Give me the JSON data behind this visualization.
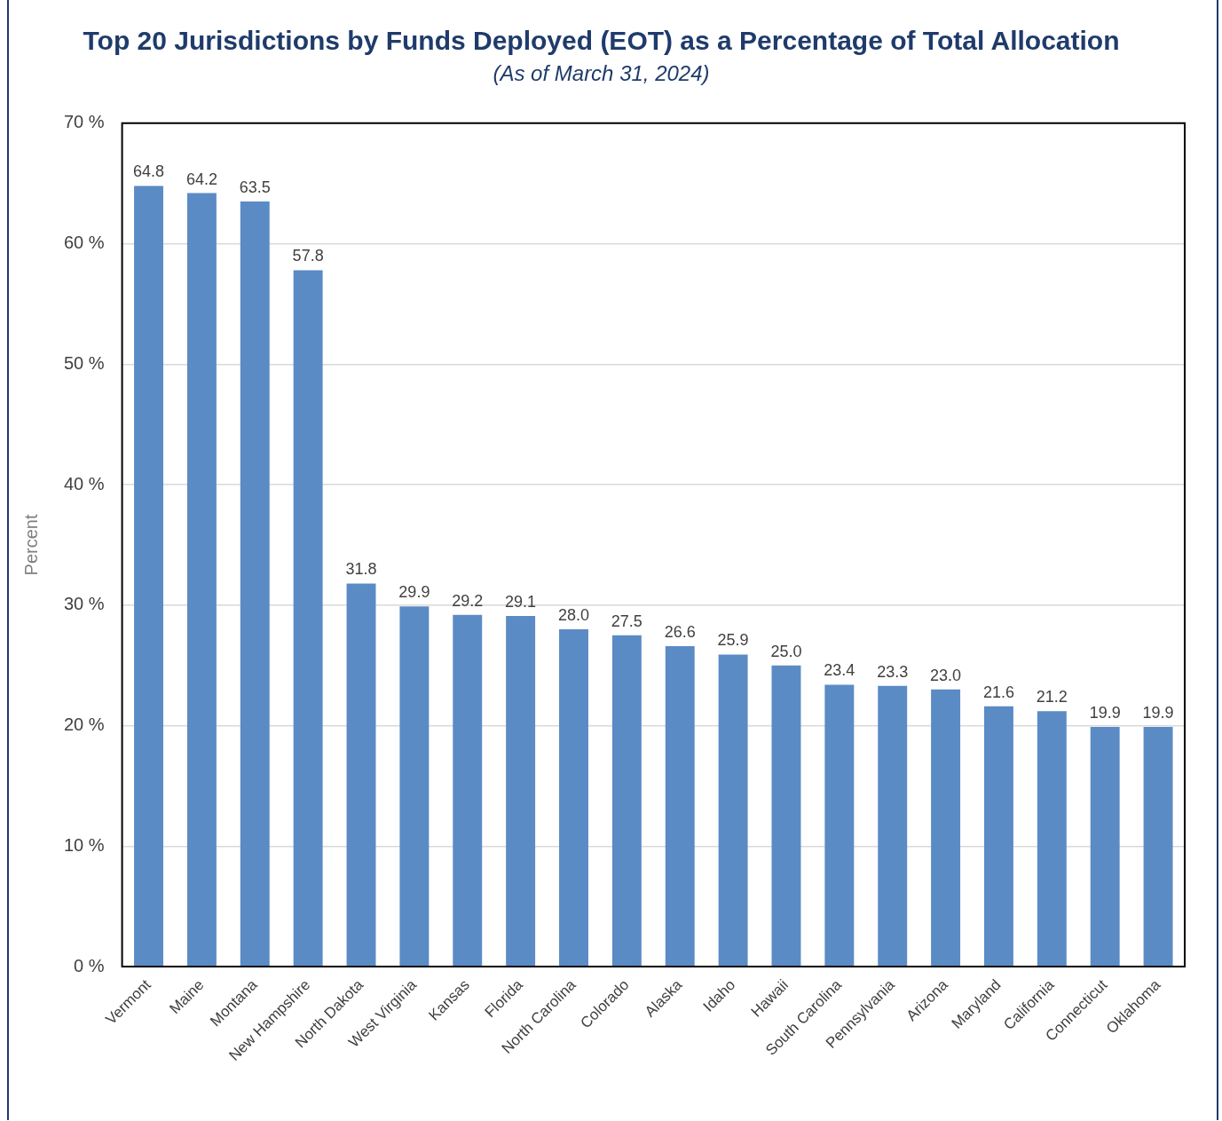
{
  "chart_data": {
    "type": "bar",
    "title": "Top 20 Jurisdictions by Funds Deployed (EOT) as a Percentage of Total Allocation",
    "subtitle": "(As of March 31, 2024)",
    "ylabel": "Percent",
    "categories": [
      "Vermont",
      "Maine",
      "Montana",
      "New Hampshire",
      "North Dakota",
      "West Virginia",
      "Kansas",
      "Florida",
      "North Carolina",
      "Colorado",
      "Alaska",
      "Idaho",
      "Hawaii",
      "South Carolina",
      "Pennsylvania",
      "Arizona",
      "Maryland",
      "California",
      "Connecticut",
      "Oklahoma"
    ],
    "values": [
      64.8,
      64.2,
      63.5,
      57.8,
      31.8,
      29.9,
      29.2,
      29.1,
      28.0,
      27.5,
      26.6,
      25.9,
      25.0,
      23.4,
      23.3,
      23.0,
      21.6,
      21.2,
      19.9,
      19.9
    ],
    "value_labels": [
      "64.8",
      "64.2",
      "63.5",
      "57.8",
      "31.8",
      "29.9",
      "29.2",
      "29.1",
      "28.0",
      "27.5",
      "26.6",
      "25.9",
      "25.0",
      "23.4",
      "23.3",
      "23.0",
      "21.6",
      "21.2",
      "19.9",
      "19.9"
    ],
    "color": "#5b8bc5",
    "ylim": [
      0,
      70
    ],
    "yticks": [
      {
        "value": 0,
        "label": "0 %"
      },
      {
        "value": 10,
        "label": "10 %"
      },
      {
        "value": 20,
        "label": "20 %"
      },
      {
        "value": 30,
        "label": "30 %"
      },
      {
        "value": 40,
        "label": "40 %"
      },
      {
        "value": 50,
        "label": "50 %"
      },
      {
        "value": 60,
        "label": "60 %"
      },
      {
        "value": 70,
        "label": "70 %"
      }
    ],
    "grid": "y",
    "legend": false
  }
}
